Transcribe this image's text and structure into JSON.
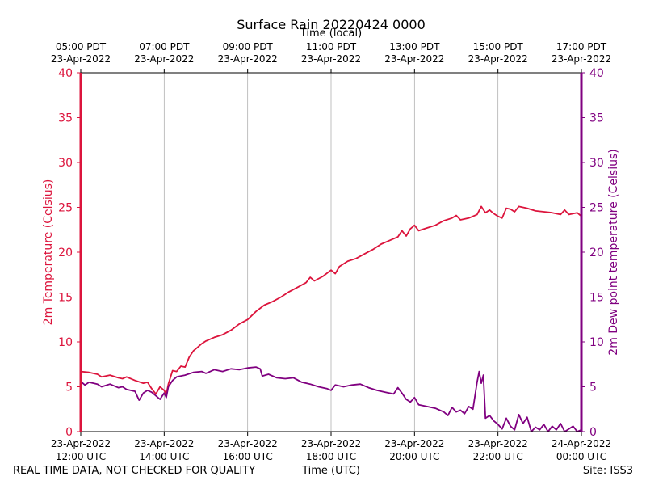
{
  "chart_data": {
    "type": "line",
    "title": "Surface Rain 20220424 0000",
    "top_xlabel": "Time (local)",
    "xlabel": "Time (UTC)",
    "ylabel_left": "2m Temperature (Celsius)",
    "ylabel_right": "2m Dew point temperature (Celsius)",
    "ylim": [
      0,
      40
    ],
    "y_ticks": [
      "0",
      "5",
      "10",
      "15",
      "20",
      "25",
      "30",
      "35",
      "40"
    ],
    "xlim_hours": [
      12,
      24
    ],
    "grid": "vertical",
    "bottom_ticks": [
      {
        "hour": 12,
        "line1": "23-Apr-2022",
        "line2": "12:00 UTC"
      },
      {
        "hour": 14,
        "line1": "23-Apr-2022",
        "line2": "14:00 UTC"
      },
      {
        "hour": 16,
        "line1": "23-Apr-2022",
        "line2": "16:00 UTC"
      },
      {
        "hour": 18,
        "line1": "23-Apr-2022",
        "line2": "18:00 UTC"
      },
      {
        "hour": 20,
        "line1": "23-Apr-2022",
        "line2": "20:00 UTC"
      },
      {
        "hour": 22,
        "line1": "23-Apr-2022",
        "line2": "22:00 UTC"
      },
      {
        "hour": 24,
        "line1": "24-Apr-2022",
        "line2": "00:00 UTC"
      }
    ],
    "top_ticks": [
      {
        "hour": 12,
        "line1": "05:00 PDT",
        "line2": "23-Apr-2022"
      },
      {
        "hour": 14,
        "line1": "07:00 PDT",
        "line2": "23-Apr-2022"
      },
      {
        "hour": 16,
        "line1": "09:00 PDT",
        "line2": "23-Apr-2022"
      },
      {
        "hour": 18,
        "line1": "11:00 PDT",
        "line2": "23-Apr-2022"
      },
      {
        "hour": 20,
        "line1": "13:00 PDT",
        "line2": "23-Apr-2022"
      },
      {
        "hour": 22,
        "line1": "15:00 PDT",
        "line2": "23-Apr-2022"
      },
      {
        "hour": 24,
        "line1": "17:00 PDT",
        "line2": "23-Apr-2022"
      }
    ],
    "series": [
      {
        "name": "2m Temperature",
        "color": "#dc143c",
        "points": [
          [
            12.0,
            6.7
          ],
          [
            12.2,
            6.6
          ],
          [
            12.4,
            6.4
          ],
          [
            12.5,
            6.1
          ],
          [
            12.7,
            6.3
          ],
          [
            12.9,
            6.0
          ],
          [
            13.0,
            5.9
          ],
          [
            13.1,
            6.1
          ],
          [
            13.3,
            5.7
          ],
          [
            13.5,
            5.4
          ],
          [
            13.6,
            5.5
          ],
          [
            13.7,
            4.8
          ],
          [
            13.8,
            4.2
          ],
          [
            13.9,
            5.0
          ],
          [
            14.0,
            4.6
          ],
          [
            14.05,
            4.2
          ],
          [
            14.1,
            5.3
          ],
          [
            14.2,
            6.8
          ],
          [
            14.3,
            6.7
          ],
          [
            14.4,
            7.3
          ],
          [
            14.5,
            7.2
          ],
          [
            14.6,
            8.3
          ],
          [
            14.7,
            9.0
          ],
          [
            14.8,
            9.4
          ],
          [
            14.9,
            9.8
          ],
          [
            15.0,
            10.1
          ],
          [
            15.2,
            10.5
          ],
          [
            15.4,
            10.8
          ],
          [
            15.6,
            11.3
          ],
          [
            15.8,
            12.0
          ],
          [
            16.0,
            12.5
          ],
          [
            16.2,
            13.4
          ],
          [
            16.4,
            14.1
          ],
          [
            16.6,
            14.5
          ],
          [
            16.8,
            15.0
          ],
          [
            17.0,
            15.6
          ],
          [
            17.2,
            16.1
          ],
          [
            17.4,
            16.6
          ],
          [
            17.5,
            17.2
          ],
          [
            17.6,
            16.8
          ],
          [
            17.8,
            17.3
          ],
          [
            18.0,
            18.0
          ],
          [
            18.1,
            17.6
          ],
          [
            18.2,
            18.4
          ],
          [
            18.4,
            19.0
          ],
          [
            18.6,
            19.3
          ],
          [
            18.8,
            19.8
          ],
          [
            19.0,
            20.3
          ],
          [
            19.2,
            20.9
          ],
          [
            19.4,
            21.3
          ],
          [
            19.6,
            21.7
          ],
          [
            19.7,
            22.4
          ],
          [
            19.8,
            21.8
          ],
          [
            19.9,
            22.6
          ],
          [
            20.0,
            23.0
          ],
          [
            20.1,
            22.4
          ],
          [
            20.3,
            22.7
          ],
          [
            20.5,
            23.0
          ],
          [
            20.7,
            23.5
          ],
          [
            20.9,
            23.8
          ],
          [
            21.0,
            24.1
          ],
          [
            21.1,
            23.6
          ],
          [
            21.3,
            23.8
          ],
          [
            21.5,
            24.2
          ],
          [
            21.6,
            25.1
          ],
          [
            21.7,
            24.4
          ],
          [
            21.8,
            24.7
          ],
          [
            21.9,
            24.3
          ],
          [
            22.0,
            24.0
          ],
          [
            22.1,
            23.8
          ],
          [
            22.2,
            24.9
          ],
          [
            22.3,
            24.8
          ],
          [
            22.4,
            24.5
          ],
          [
            22.5,
            25.1
          ],
          [
            22.7,
            24.9
          ],
          [
            22.9,
            24.6
          ],
          [
            23.1,
            24.5
          ],
          [
            23.3,
            24.4
          ],
          [
            23.5,
            24.2
          ],
          [
            23.6,
            24.7
          ],
          [
            23.7,
            24.2
          ],
          [
            23.9,
            24.4
          ],
          [
            24.0,
            24.0
          ]
        ]
      },
      {
        "name": "2m Dew point temperature",
        "color": "#800080",
        "points": [
          [
            12.0,
            5.6
          ],
          [
            12.1,
            5.2
          ],
          [
            12.2,
            5.5
          ],
          [
            12.4,
            5.3
          ],
          [
            12.5,
            5.0
          ],
          [
            12.7,
            5.3
          ],
          [
            12.9,
            4.9
          ],
          [
            13.0,
            5.0
          ],
          [
            13.1,
            4.7
          ],
          [
            13.3,
            4.5
          ],
          [
            13.4,
            3.5
          ],
          [
            13.5,
            4.3
          ],
          [
            13.6,
            4.6
          ],
          [
            13.7,
            4.4
          ],
          [
            13.8,
            4.0
          ],
          [
            13.9,
            3.6
          ],
          [
            14.0,
            4.3
          ],
          [
            14.05,
            3.8
          ],
          [
            14.1,
            5.0
          ],
          [
            14.2,
            5.7
          ],
          [
            14.3,
            6.1
          ],
          [
            14.5,
            6.3
          ],
          [
            14.7,
            6.6
          ],
          [
            14.9,
            6.7
          ],
          [
            15.0,
            6.5
          ],
          [
            15.2,
            6.9
          ],
          [
            15.4,
            6.7
          ],
          [
            15.6,
            7.0
          ],
          [
            15.8,
            6.9
          ],
          [
            16.0,
            7.1
          ],
          [
            16.2,
            7.2
          ],
          [
            16.3,
            7.0
          ],
          [
            16.35,
            6.2
          ],
          [
            16.5,
            6.4
          ],
          [
            16.7,
            6.0
          ],
          [
            16.9,
            5.9
          ],
          [
            17.1,
            6.0
          ],
          [
            17.3,
            5.5
          ],
          [
            17.5,
            5.3
          ],
          [
            17.7,
            5.0
          ],
          [
            17.9,
            4.8
          ],
          [
            18.0,
            4.6
          ],
          [
            18.1,
            5.2
          ],
          [
            18.3,
            5.0
          ],
          [
            18.5,
            5.2
          ],
          [
            18.7,
            5.3
          ],
          [
            18.9,
            4.9
          ],
          [
            19.1,
            4.6
          ],
          [
            19.3,
            4.4
          ],
          [
            19.5,
            4.2
          ],
          [
            19.6,
            4.9
          ],
          [
            19.7,
            4.3
          ],
          [
            19.8,
            3.6
          ],
          [
            19.9,
            3.3
          ],
          [
            20.0,
            3.8
          ],
          [
            20.1,
            3.0
          ],
          [
            20.3,
            2.8
          ],
          [
            20.5,
            2.6
          ],
          [
            20.7,
            2.2
          ],
          [
            20.8,
            1.8
          ],
          [
            20.9,
            2.7
          ],
          [
            21.0,
            2.2
          ],
          [
            21.1,
            2.4
          ],
          [
            21.2,
            2.0
          ],
          [
            21.3,
            2.8
          ],
          [
            21.4,
            2.5
          ],
          [
            21.5,
            5.5
          ],
          [
            21.55,
            6.7
          ],
          [
            21.6,
            5.4
          ],
          [
            21.65,
            6.3
          ],
          [
            21.7,
            1.5
          ],
          [
            21.8,
            1.8
          ],
          [
            21.9,
            1.2
          ],
          [
            22.0,
            0.8
          ],
          [
            22.1,
            0.3
          ],
          [
            22.2,
            1.5
          ],
          [
            22.3,
            0.6
          ],
          [
            22.4,
            0.2
          ],
          [
            22.5,
            1.9
          ],
          [
            22.6,
            0.9
          ],
          [
            22.7,
            1.6
          ],
          [
            22.8,
            0.0
          ],
          [
            22.9,
            0.5
          ],
          [
            23.0,
            0.2
          ],
          [
            23.1,
            0.8
          ],
          [
            23.2,
            0.0
          ],
          [
            23.3,
            0.6
          ],
          [
            23.4,
            0.2
          ],
          [
            23.5,
            0.9
          ],
          [
            23.6,
            0.0
          ],
          [
            23.7,
            0.3
          ],
          [
            23.8,
            0.6
          ],
          [
            23.9,
            0.0
          ],
          [
            24.0,
            0.2
          ]
        ]
      }
    ]
  },
  "footer": {
    "left_text": "REAL TIME DATA, NOT CHECKED FOR QUALITY",
    "right_text": "Site: ISS3"
  }
}
